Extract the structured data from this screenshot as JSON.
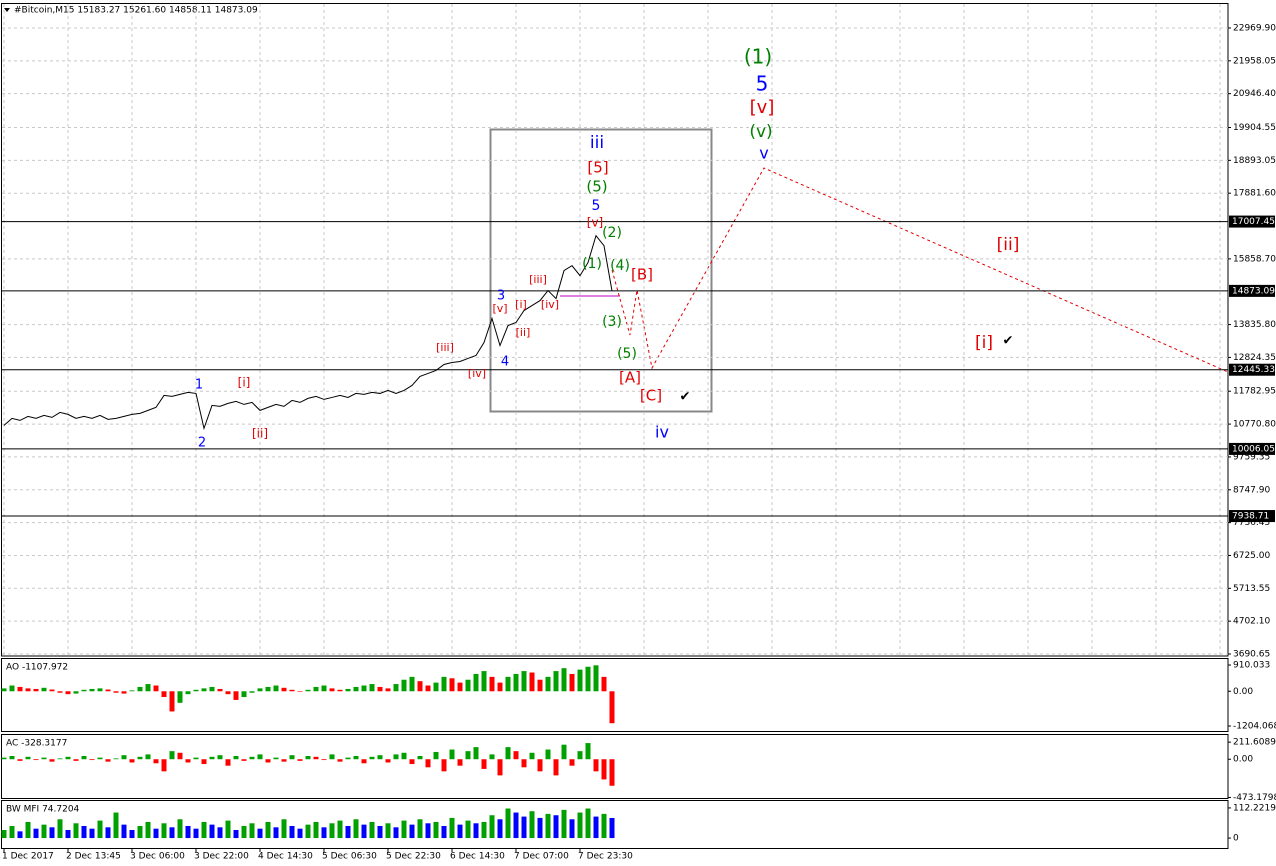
{
  "chart_data": [
    {
      "type": "line",
      "title": "#Bitcoin,M15  15183.27 15261.60 14858.11 14873.09",
      "categories": [
        "1 Dec 2017",
        null,
        null,
        null,
        null,
        null,
        null,
        null,
        "2 Dec 13:45",
        null,
        null,
        null,
        null,
        null,
        null,
        null,
        "3 Dec 06:00",
        null,
        null,
        null,
        null,
        null,
        null,
        null,
        "3 Dec 22:00",
        null,
        null,
        null,
        null,
        null,
        null,
        null,
        "4 Dec 14:30",
        null,
        null,
        null,
        null,
        null,
        null,
        null,
        "5 Dec 06:30",
        null,
        null,
        null,
        null,
        null,
        null,
        null,
        "5 Dec 22:30",
        null,
        null,
        null,
        null,
        null,
        null,
        null,
        "6 Dec 14:30",
        null,
        null,
        null,
        null,
        null,
        null,
        null,
        "7 Dec 07:00",
        null,
        null,
        null,
        null,
        null,
        null,
        null,
        "7 Dec 23:30",
        null,
        null,
        null,
        null
      ],
      "series": [
        {
          "color": "#000000",
          "values": [
            10732,
            10947,
            10885,
            11008,
            10947,
            11039,
            10977,
            11131,
            11070,
            10947,
            11008,
            10947,
            11039,
            10916,
            10947,
            11008,
            11070,
            11100,
            11193,
            11285,
            11654,
            11623,
            11685,
            11746,
            11715,
            10639,
            11346,
            11316,
            11408,
            11469,
            11377,
            11439,
            11193,
            11285,
            11377,
            11316,
            11500,
            11439,
            11562,
            11623,
            11531,
            11592,
            11654,
            11592,
            11715,
            11685,
            11746,
            11715,
            11808,
            11715,
            11808,
            11961,
            12238,
            12330,
            12423,
            12607,
            12669,
            12699,
            12792,
            12884,
            13284,
            14022,
            13191,
            13806,
            13899,
            14268,
            14421,
            14575,
            14883,
            14637,
            15498,
            15651,
            15344,
            15744,
            16574,
            16266,
            14873
          ]
        }
      ],
      "ylim": [
        3629,
        23708
      ],
      "yticks": [
        {
          "value": 22969.9,
          "label": "22969.90"
        },
        {
          "value": 21958.05,
          "label": "21958.05"
        },
        {
          "value": 20946.4,
          "label": "20946.40"
        },
        {
          "value": 19904.55,
          "label": "19904.55"
        },
        {
          "value": 18893.05,
          "label": "18893.05"
        },
        {
          "value": 17881.6,
          "label": "17881.60"
        },
        {
          "value": 15858.7,
          "label": "15858.70"
        },
        {
          "value": 13835.8,
          "label": "13835.80"
        },
        {
          "value": 12824.35,
          "label": "12824.35"
        },
        {
          "value": 11782.95,
          "label": "11782.95"
        },
        {
          "value": 10770.8,
          "label": "10770.80"
        },
        {
          "value": 9759.35,
          "label": "9759.35"
        },
        {
          "value": 8747.9,
          "label": "8747.90"
        },
        {
          "value": 7736.45,
          "label": "7736.45"
        },
        {
          "value": 6725,
          "label": "6725.00"
        },
        {
          "value": 5713.55,
          "label": "5713.55"
        },
        {
          "value": 4702.1,
          "label": "4702.10"
        },
        {
          "value": 3690.65,
          "label": "3690.65"
        }
      ],
      "grid": true,
      "hlines": [
        17007.45,
        14873.09,
        12445.33,
        10006.05,
        7938.71
      ],
      "annotations": [
        {
          "text": "1",
          "color": "#0000ff"
        },
        {
          "text": "2",
          "color": "#0000ff"
        },
        {
          "text": "[i]",
          "color": "#e00000"
        },
        {
          "text": "[ii]",
          "color": "#e00000"
        },
        {
          "text": "[iii]",
          "color": "#e00000"
        },
        {
          "text": "[iv]",
          "color": "#e00000"
        },
        {
          "text": "3",
          "color": "#0000ff"
        },
        {
          "text": "[v]",
          "color": "#e00000"
        },
        {
          "text": "[i]",
          "color": "#e00000"
        },
        {
          "text": "[ii]",
          "color": "#e00000"
        },
        {
          "text": "[iii]",
          "color": "#e00000"
        },
        {
          "text": "[iv]",
          "color": "#e00000"
        },
        {
          "text": "4",
          "color": "#0000ff"
        },
        {
          "text": "iii",
          "color": "#0000ff"
        },
        {
          "text": "[5]",
          "color": "#e00000"
        },
        {
          "text": "(5)",
          "color": "#008000"
        },
        {
          "text": "5",
          "color": "#0000ff"
        },
        {
          "text": "[v]",
          "color": "#e00000"
        },
        {
          "text": "(2)",
          "color": "#008000"
        },
        {
          "text": "(1)",
          "color": "#008000"
        },
        {
          "text": "(4)",
          "color": "#008000"
        },
        {
          "text": "[B]",
          "color": "#e00000"
        },
        {
          "text": "(3)",
          "color": "#008000"
        },
        {
          "text": "(5)",
          "color": "#008000"
        },
        {
          "text": "[A]",
          "color": "#e00000"
        },
        {
          "text": "[C]",
          "color": "#e00000"
        },
        {
          "text": "✔",
          "color": "#000000"
        },
        {
          "text": "iv",
          "color": "#0000ff"
        },
        {
          "text": "(1)",
          "color": "#008000"
        },
        {
          "text": "5",
          "color": "#0000ff"
        },
        {
          "text": "[v]",
          "color": "#e00000"
        },
        {
          "text": "(v)",
          "color": "#008000"
        },
        {
          "text": "v",
          "color": "#0000ff"
        },
        {
          "text": "[ii]",
          "color": "#e00000"
        },
        {
          "text": "[i]",
          "color": "#e00000"
        },
        {
          "text": "✔",
          "color": "#000000"
        }
      ]
    },
    {
      "type": "bar",
      "title": "AO -1107.972",
      "colors": [
        "#00a000",
        "#ff0000"
      ],
      "ylim": [
        -1378,
        1119
      ],
      "yticks": [
        910.033,
        {
          "value": 0,
          "label": "0.00"
        },
        -1204.068
      ],
      "values": [
        100,
        200,
        150,
        100,
        80,
        120,
        60,
        -50,
        -100,
        -80,
        50,
        80,
        100,
        60,
        -50,
        -80,
        30,
        150,
        250,
        200,
        -200,
        -700,
        -400,
        -100,
        50,
        100,
        150,
        80,
        -100,
        -300,
        -200,
        -50,
        100,
        150,
        200,
        120,
        50,
        -20,
        50,
        150,
        200,
        100,
        50,
        80,
        150,
        200,
        250,
        150,
        100,
        250,
        400,
        500,
        350,
        200,
        300,
        500,
        450,
        300,
        400,
        600,
        700,
        500,
        300,
        500,
        600,
        700,
        650,
        400,
        500,
        700,
        800,
        600,
        750,
        850,
        900,
        500,
        -1107.972
      ]
    },
    {
      "type": "bar",
      "title": "AC -328.3177",
      "colors": [
        "#00a000",
        "#ff0000"
      ],
      "ylim": [
        -480,
        300
      ],
      "yticks": [
        211.6089,
        {
          "value": 0,
          "label": "0.00"
        },
        -473.1798
      ],
      "values": [
        20,
        40,
        -20,
        30,
        -10,
        20,
        -30,
        10,
        30,
        -20,
        40,
        -10,
        20,
        -30,
        10,
        50,
        -40,
        30,
        60,
        -50,
        -150,
        100,
        80,
        -40,
        20,
        -60,
        30,
        50,
        -80,
        40,
        -20,
        30,
        60,
        -40,
        20,
        -30,
        50,
        -20,
        40,
        30,
        -10,
        60,
        -30,
        20,
        40,
        -50,
        30,
        50,
        -40,
        60,
        80,
        -60,
        40,
        -100,
        90,
        -150,
        120,
        -80,
        100,
        150,
        -120,
        60,
        -200,
        150,
        100,
        -100,
        80,
        -150,
        120,
        -200,
        180,
        -80,
        100,
        200,
        -150,
        -250,
        -328.3177
      ]
    },
    {
      "type": "bar",
      "title": "BW MFI 74.7204",
      "colors": [
        "#00a000",
        "#0000ff"
      ],
      "ylim": [
        -37,
        138
      ],
      "yticks": [
        112.2219,
        0
      ],
      "values": [
        30,
        45,
        25,
        60,
        35,
        50,
        40,
        70,
        30,
        55,
        45,
        35,
        65,
        40,
        95,
        50,
        30,
        45,
        60,
        35,
        55,
        40,
        70,
        45,
        35,
        60,
        50,
        40,
        65,
        30,
        45,
        55,
        35,
        60,
        40,
        70,
        45,
        35,
        50,
        60,
        40,
        55,
        65,
        45,
        70,
        50,
        60,
        45,
        55,
        40,
        65,
        50,
        70,
        55,
        60,
        45,
        75,
        50,
        65,
        55,
        60,
        85,
        70,
        110,
        95,
        80,
        100,
        75,
        90,
        85,
        105,
        70,
        95,
        110,
        80,
        90,
        74.7204
      ]
    }
  ]
}
